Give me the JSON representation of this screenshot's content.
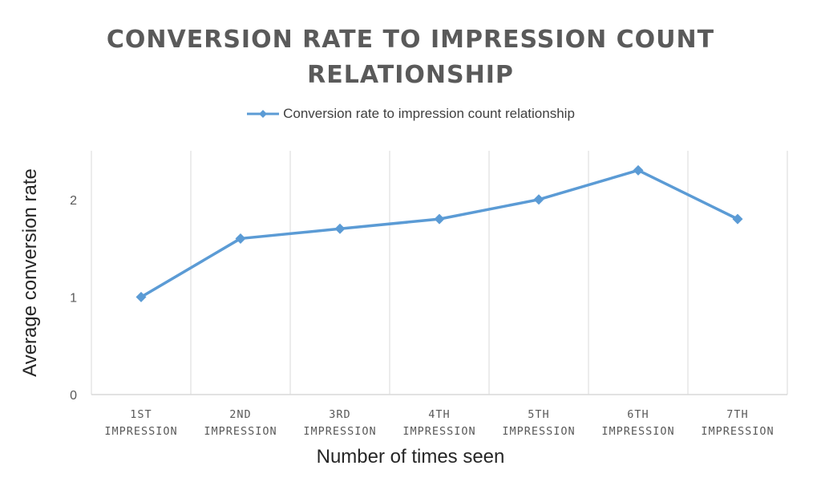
{
  "chart_data": {
    "type": "line",
    "title_lines": [
      "CONVERSION RATE TO IMPRESSION COUNT",
      "RELATIONSHIP"
    ],
    "xlabel": "Number of times seen",
    "ylabel": "Average conversion rate",
    "categories": [
      [
        "1ST",
        "IMPRESSION"
      ],
      [
        "2ND",
        "IMPRESSION"
      ],
      [
        "3RD",
        "IMPRESSION"
      ],
      [
        "4TH",
        "IMPRESSION"
      ],
      [
        "5TH",
        "IMPRESSION"
      ],
      [
        "6TH",
        "IMPRESSION"
      ],
      [
        "7TH",
        "IMPRESSION"
      ]
    ],
    "series": [
      {
        "name": "Conversion rate to impression count relationship",
        "values": [
          1.0,
          1.6,
          1.7,
          1.8,
          2.0,
          2.3,
          1.8
        ],
        "color": "#5b9bd5",
        "marker": "diamond"
      }
    ],
    "ylim": [
      0,
      2.5
    ],
    "yticks": [
      "0",
      "1",
      "2"
    ],
    "grid": "vertical category separators",
    "legend_position": "top"
  }
}
